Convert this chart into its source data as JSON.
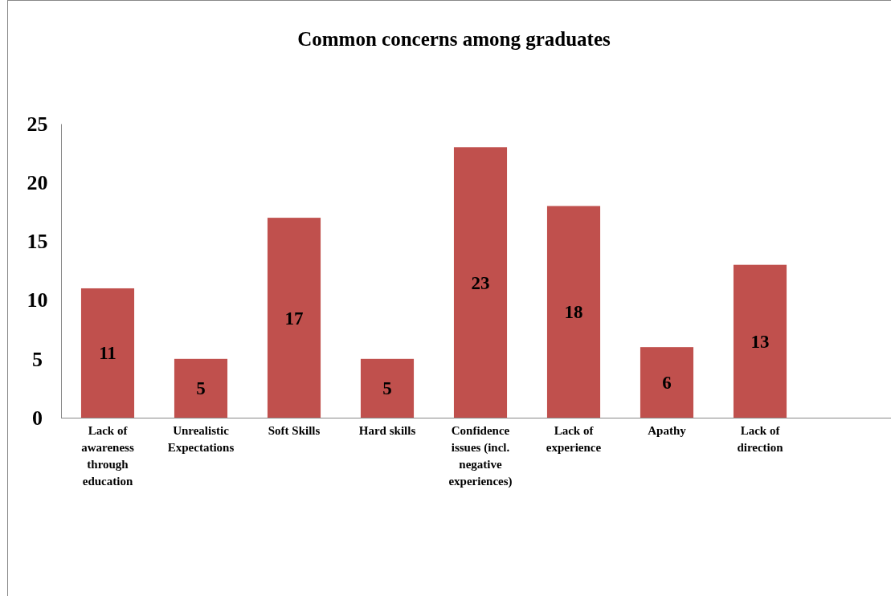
{
  "chart_data": {
    "type": "bar",
    "title": "Common concerns among graduates",
    "categories": [
      "Lack of awareness through education",
      "Unrealistic Expectations",
      "Soft Skills",
      "Hard skills",
      "Confidence issues (incl. negative experiences)",
      "Lack of experience",
      "Apathy",
      "Lack of direction"
    ],
    "values": [
      11,
      5,
      17,
      5,
      23,
      18,
      6,
      13
    ],
    "color": "#c0504d",
    "data_labels": true,
    "ylim": [
      0,
      25
    ],
    "yticks": [
      0,
      5,
      10,
      15,
      20,
      25
    ],
    "grid": false
  }
}
